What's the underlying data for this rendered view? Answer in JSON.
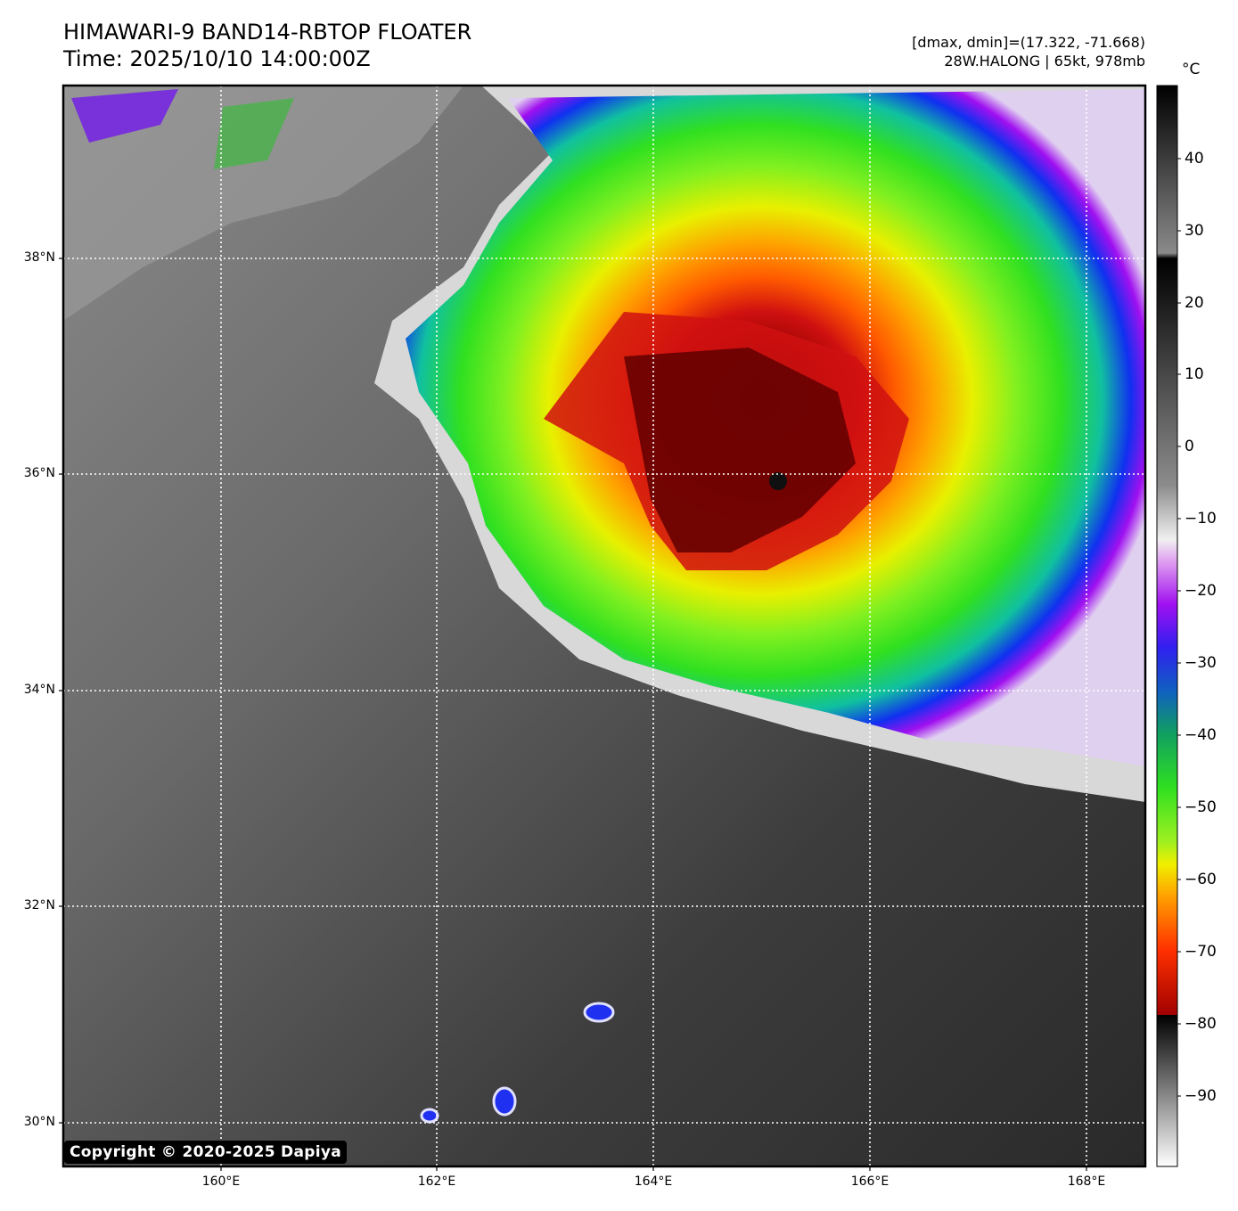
{
  "title": {
    "line1": "HIMAWARI-9 BAND14-RBTOP FLOATER",
    "line2": "Time: 2025/10/10 14:00:00Z"
  },
  "info": {
    "range": "[dmax, dmin]=(17.322, -71.668)",
    "storm": "28W.HALONG | 65kt, 978mb"
  },
  "copyright": "Copyright © 2020-2025 Dapiya",
  "axes": {
    "lat_labels": [
      "38°N",
      "36°N",
      "34°N",
      "32°N",
      "30°N"
    ],
    "lon_labels": [
      "160°E",
      "162°E",
      "164°E",
      "166°E",
      "168°E"
    ]
  },
  "colorbar": {
    "unit": "°C",
    "ticks": [
      "40",
      "30",
      "20",
      "10",
      "0",
      "−10",
      "−20",
      "−30",
      "−40",
      "−50",
      "−60",
      "−70",
      "−80",
      "−90"
    ],
    "range_c": [
      -100,
      50
    ]
  },
  "colors": {
    "frame": "#000000",
    "grid": "#ffffff",
    "cloud_top_coldest": "#3a0000",
    "cloud_top_red": "#d01010",
    "cloud_top_orange": "#ff7a00",
    "cloud_top_yellow": "#e8f000",
    "cloud_top_green": "#30e020",
    "cloud_top_blue": "#1030f0",
    "cloud_top_purple": "#a010f0",
    "clear_sky": "#4a4a4a"
  }
}
